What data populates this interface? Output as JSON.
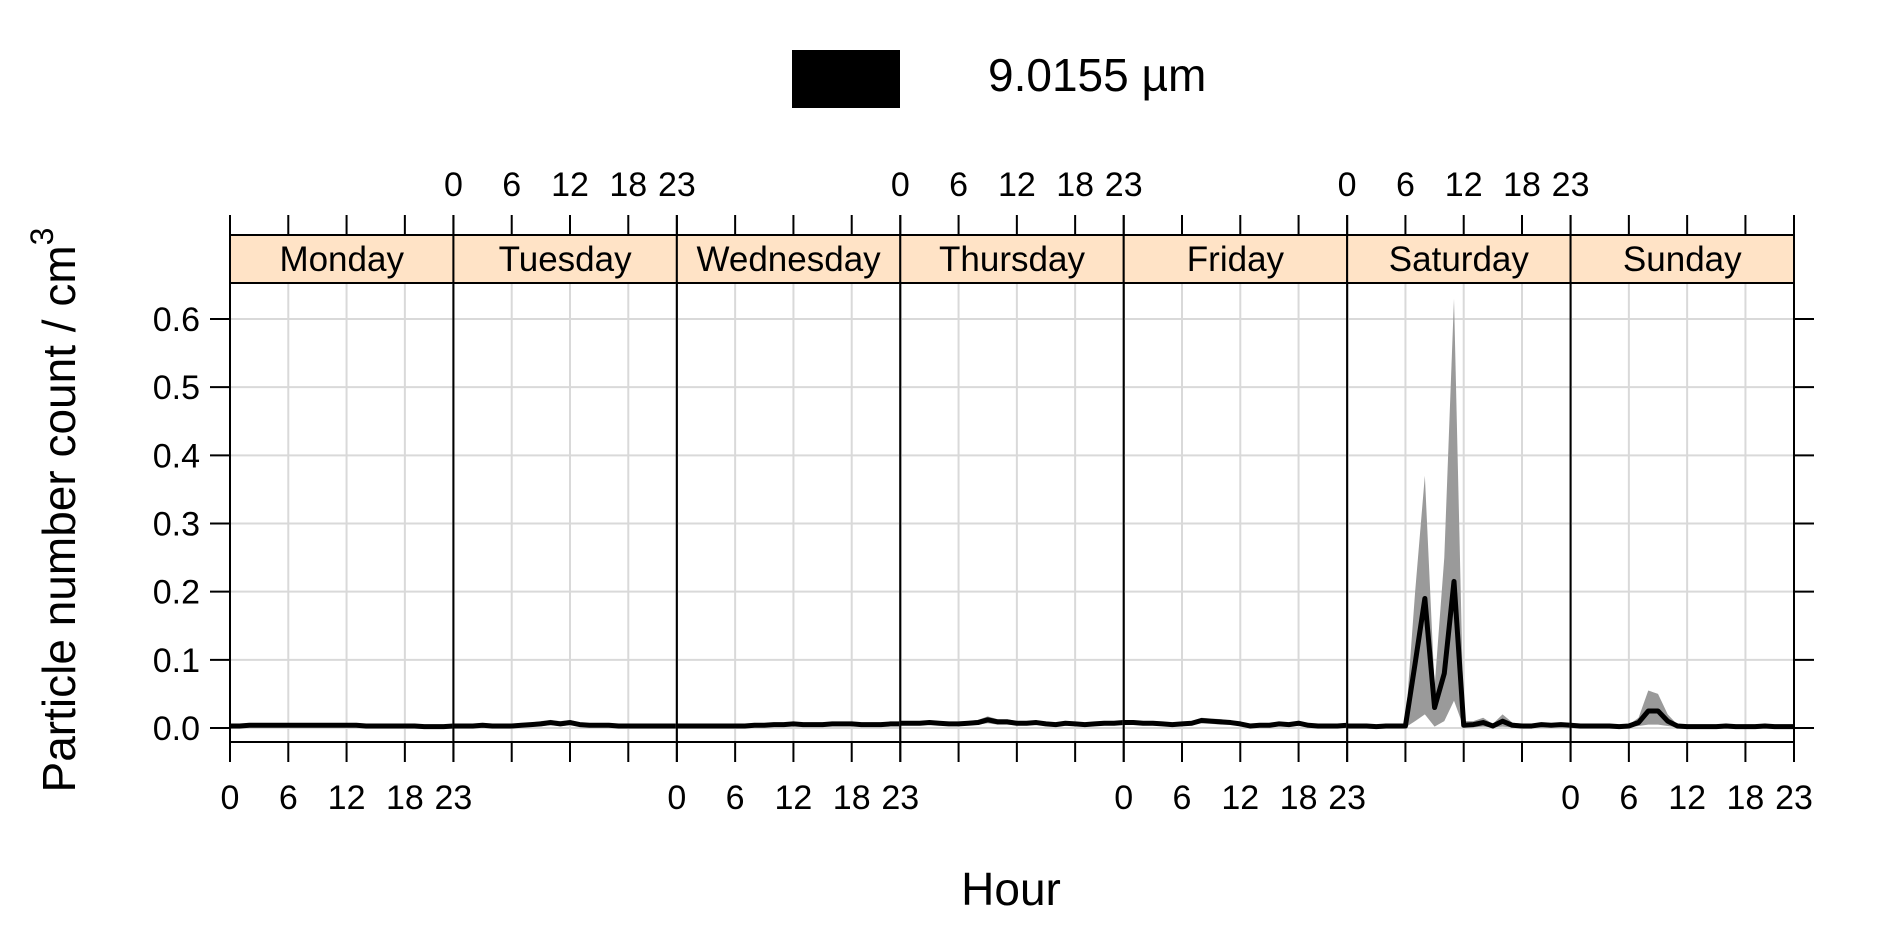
{
  "legend": {
    "swatch_color": "#000000",
    "label": "9.0155 µm"
  },
  "chart_data": {
    "type": "line",
    "xlabel": "Hour",
    "ylabel": "Particle number count / cm",
    "ylabel_superscript": "3",
    "ylim": [
      -0.022,
      0.66
    ],
    "yticks": [
      "0.0",
      "0.1",
      "0.2",
      "0.3",
      "0.4",
      "0.5",
      "0.6"
    ],
    "yticks_values": [
      0.0,
      0.1,
      0.2,
      0.3,
      0.4,
      0.5,
      0.6
    ],
    "xticks_values": [
      0,
      6,
      12,
      18,
      23
    ],
    "xticks_labels": [
      "0",
      "6",
      "12",
      "18",
      "23"
    ],
    "xlim": [
      0,
      23
    ],
    "grid": true,
    "colors": {
      "line": "#000000",
      "band": "#9a9a9a",
      "strip_fill": "#ffe3c6",
      "grid": "#d9d9d9"
    },
    "panels": [
      {
        "day": "Monday",
        "mean": [
          0.003,
          0.003,
          0.004,
          0.004,
          0.004,
          0.004,
          0.004,
          0.004,
          0.004,
          0.004,
          0.004,
          0.004,
          0.004,
          0.004,
          0.003,
          0.003,
          0.003,
          0.003,
          0.003,
          0.003,
          0.002,
          0.002,
          0.002,
          0.003
        ],
        "lower": [
          0.001,
          0.001,
          0.002,
          0.002,
          0.002,
          0.002,
          0.002,
          0.002,
          0.002,
          0.002,
          0.002,
          0.002,
          0.002,
          0.002,
          0.001,
          0.001,
          0.001,
          0.001,
          0.001,
          0.001,
          0.001,
          0.001,
          0.001,
          0.001
        ],
        "upper": [
          0.005,
          0.005,
          0.006,
          0.006,
          0.006,
          0.006,
          0.006,
          0.006,
          0.006,
          0.006,
          0.006,
          0.006,
          0.006,
          0.006,
          0.005,
          0.005,
          0.005,
          0.005,
          0.005,
          0.005,
          0.004,
          0.004,
          0.004,
          0.005
        ]
      },
      {
        "day": "Tuesday",
        "mean": [
          0.003,
          0.003,
          0.003,
          0.004,
          0.003,
          0.003,
          0.003,
          0.004,
          0.005,
          0.006,
          0.008,
          0.006,
          0.008,
          0.005,
          0.004,
          0.004,
          0.004,
          0.003,
          0.003,
          0.003,
          0.003,
          0.003,
          0.003,
          0.003
        ],
        "lower": [
          0.001,
          0.001,
          0.001,
          0.002,
          0.001,
          0.001,
          0.001,
          0.002,
          0.003,
          0.003,
          0.004,
          0.003,
          0.004,
          0.003,
          0.002,
          0.002,
          0.002,
          0.001,
          0.001,
          0.001,
          0.001,
          0.001,
          0.001,
          0.001
        ],
        "upper": [
          0.005,
          0.005,
          0.005,
          0.006,
          0.005,
          0.005,
          0.005,
          0.006,
          0.008,
          0.01,
          0.012,
          0.01,
          0.012,
          0.008,
          0.006,
          0.006,
          0.006,
          0.005,
          0.005,
          0.005,
          0.005,
          0.005,
          0.005,
          0.005
        ]
      },
      {
        "day": "Wednesday",
        "mean": [
          0.003,
          0.003,
          0.003,
          0.003,
          0.003,
          0.003,
          0.003,
          0.003,
          0.004,
          0.004,
          0.005,
          0.005,
          0.006,
          0.005,
          0.005,
          0.005,
          0.006,
          0.006,
          0.006,
          0.005,
          0.005,
          0.005,
          0.006,
          0.006
        ],
        "lower": [
          0.001,
          0.001,
          0.001,
          0.001,
          0.001,
          0.001,
          0.001,
          0.001,
          0.002,
          0.002,
          0.003,
          0.003,
          0.003,
          0.003,
          0.003,
          0.003,
          0.003,
          0.003,
          0.003,
          0.003,
          0.003,
          0.003,
          0.003,
          0.003
        ],
        "upper": [
          0.005,
          0.005,
          0.005,
          0.005,
          0.005,
          0.005,
          0.005,
          0.005,
          0.006,
          0.006,
          0.008,
          0.008,
          0.009,
          0.008,
          0.008,
          0.008,
          0.009,
          0.009,
          0.009,
          0.008,
          0.008,
          0.008,
          0.009,
          0.009
        ]
      },
      {
        "day": "Thursday",
        "mean": [
          0.007,
          0.007,
          0.007,
          0.008,
          0.007,
          0.006,
          0.006,
          0.007,
          0.008,
          0.012,
          0.009,
          0.009,
          0.007,
          0.007,
          0.008,
          0.006,
          0.005,
          0.007,
          0.006,
          0.005,
          0.006,
          0.007,
          0.007,
          0.008
        ],
        "lower": [
          0.004,
          0.004,
          0.004,
          0.005,
          0.004,
          0.003,
          0.003,
          0.004,
          0.005,
          0.007,
          0.005,
          0.005,
          0.004,
          0.004,
          0.005,
          0.003,
          0.003,
          0.004,
          0.003,
          0.003,
          0.003,
          0.004,
          0.004,
          0.005
        ],
        "upper": [
          0.01,
          0.01,
          0.01,
          0.011,
          0.01,
          0.009,
          0.009,
          0.01,
          0.012,
          0.017,
          0.013,
          0.013,
          0.01,
          0.01,
          0.011,
          0.009,
          0.008,
          0.01,
          0.009,
          0.008,
          0.009,
          0.01,
          0.01,
          0.011
        ]
      },
      {
        "day": "Friday",
        "mean": [
          0.008,
          0.008,
          0.007,
          0.007,
          0.006,
          0.005,
          0.006,
          0.007,
          0.011,
          0.01,
          0.009,
          0.008,
          0.006,
          0.003,
          0.004,
          0.004,
          0.006,
          0.005,
          0.007,
          0.004,
          0.003,
          0.003,
          0.003,
          0.004
        ],
        "lower": [
          0.005,
          0.005,
          0.004,
          0.004,
          0.003,
          0.003,
          0.003,
          0.004,
          0.007,
          0.006,
          0.005,
          0.005,
          0.003,
          0.001,
          0.002,
          0.002,
          0.003,
          0.003,
          0.004,
          0.002,
          0.001,
          0.001,
          0.001,
          0.002
        ],
        "upper": [
          0.011,
          0.011,
          0.01,
          0.01,
          0.009,
          0.008,
          0.009,
          0.01,
          0.015,
          0.014,
          0.013,
          0.011,
          0.009,
          0.006,
          0.007,
          0.007,
          0.009,
          0.008,
          0.01,
          0.007,
          0.006,
          0.006,
          0.006,
          0.007
        ]
      },
      {
        "day": "Saturday",
        "mean": [
          0.003,
          0.003,
          0.003,
          0.002,
          0.003,
          0.003,
          0.003,
          0.095,
          0.19,
          0.03,
          0.08,
          0.215,
          0.004,
          0.005,
          0.008,
          0.003,
          0.01,
          0.004,
          0.003,
          0.003,
          0.005,
          0.004,
          0.005,
          0.004
        ],
        "lower": [
          0.001,
          0.001,
          0.001,
          0.001,
          0.001,
          0.001,
          0.001,
          0.01,
          0.02,
          0.002,
          0.01,
          0.04,
          0.001,
          0.001,
          0.002,
          0.001,
          0.002,
          0.001,
          0.001,
          0.001,
          0.001,
          0.001,
          0.001,
          0.001
        ],
        "upper": [
          0.005,
          0.005,
          0.005,
          0.004,
          0.005,
          0.005,
          0.005,
          0.2,
          0.37,
          0.06,
          0.25,
          0.63,
          0.01,
          0.01,
          0.015,
          0.006,
          0.02,
          0.008,
          0.006,
          0.006,
          0.008,
          0.007,
          0.008,
          0.007
        ]
      },
      {
        "day": "Sunday",
        "mean": [
          0.004,
          0.003,
          0.003,
          0.003,
          0.003,
          0.002,
          0.003,
          0.008,
          0.025,
          0.025,
          0.01,
          0.003,
          0.002,
          0.002,
          0.002,
          0.002,
          0.003,
          0.002,
          0.002,
          0.002,
          0.003,
          0.002,
          0.002,
          0.002
        ],
        "lower": [
          0.002,
          0.001,
          0.001,
          0.001,
          0.001,
          0.001,
          0.001,
          0.003,
          0.005,
          0.005,
          0.003,
          0.001,
          0.001,
          0.001,
          0.001,
          0.001,
          0.001,
          0.001,
          0.001,
          0.001,
          0.001,
          0.001,
          0.001,
          0.001
        ],
        "upper": [
          0.006,
          0.005,
          0.005,
          0.005,
          0.005,
          0.004,
          0.005,
          0.015,
          0.055,
          0.05,
          0.02,
          0.005,
          0.004,
          0.004,
          0.004,
          0.004,
          0.005,
          0.004,
          0.004,
          0.004,
          0.005,
          0.004,
          0.004,
          0.004
        ]
      }
    ]
  }
}
